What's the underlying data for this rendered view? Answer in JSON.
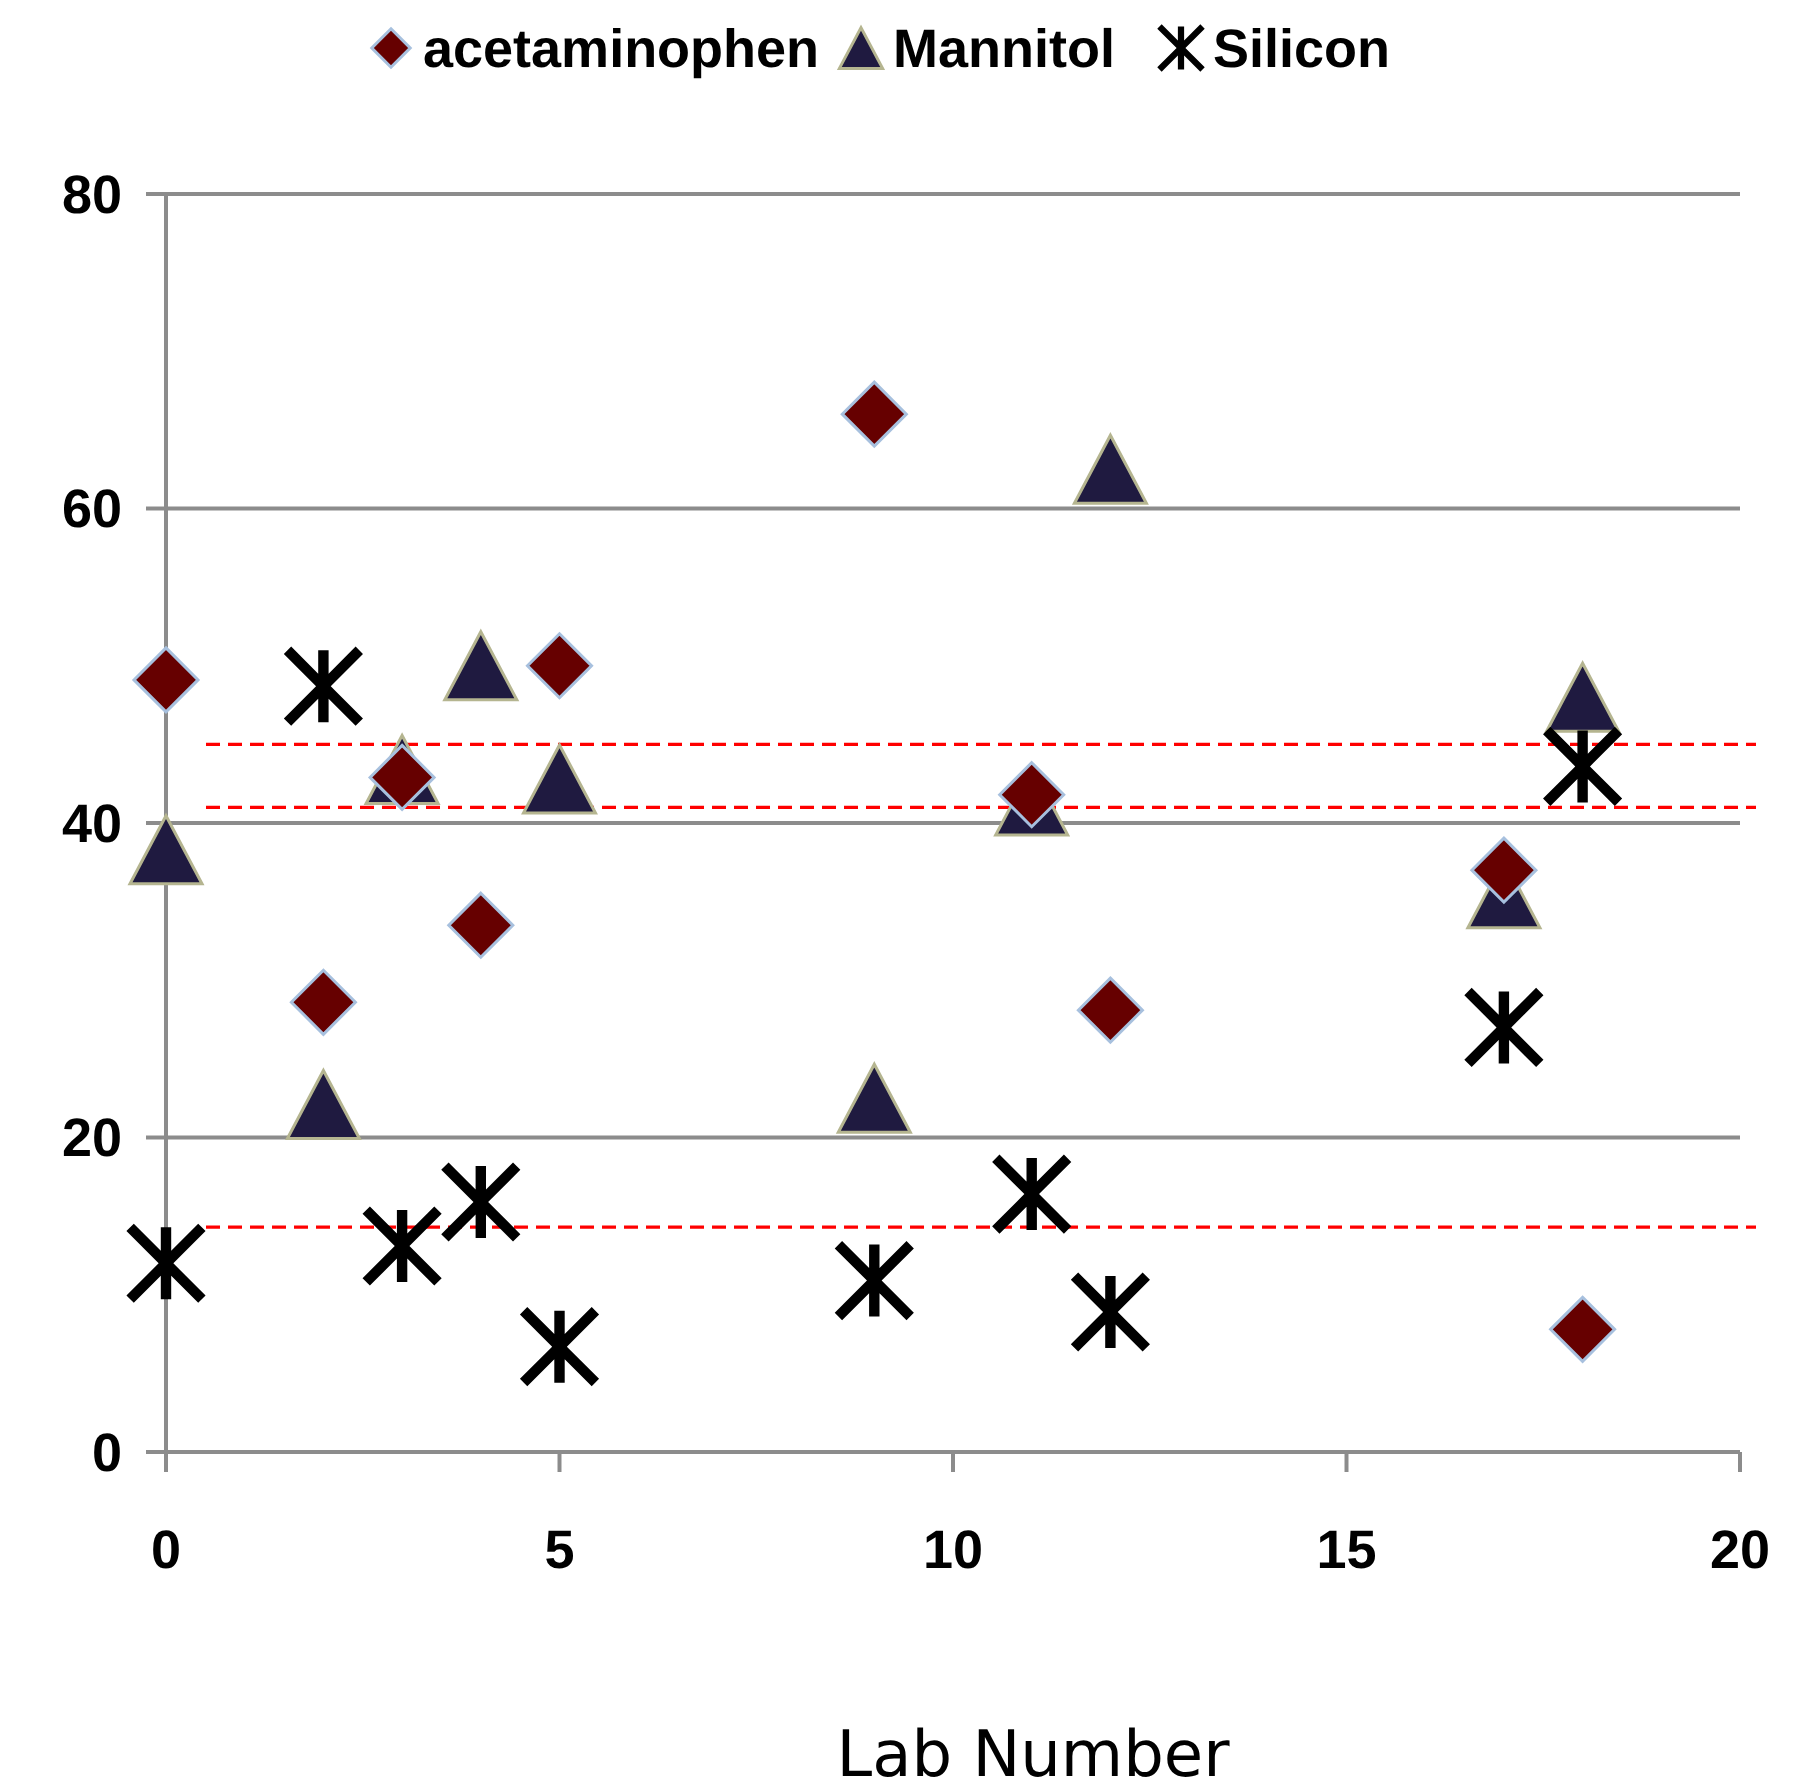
{
  "chart_data": {
    "type": "scatter",
    "xlabel": "Lab Number",
    "xlim": [
      0,
      20
    ],
    "xticks": [
      0,
      5,
      10,
      15,
      20
    ],
    "ylim": [
      0,
      80
    ],
    "yticks": [
      0,
      20,
      40,
      60,
      80
    ],
    "grid": "y",
    "legend": "top",
    "series": [
      {
        "name": "acetaminophen",
        "color": "#660000",
        "marker": "diamond",
        "x": [
          0,
          2,
          3,
          4,
          5,
          9,
          11,
          12,
          17,
          18
        ],
        "values": [
          49.1,
          28.6,
          42.9,
          33.5,
          50,
          66,
          41.8,
          28.1,
          37,
          7.8
        ]
      },
      {
        "name": "Mannitol",
        "color": "#1f1a40",
        "marker": "triangle",
        "x": [
          0,
          2,
          3,
          4,
          5,
          9,
          11,
          12,
          17,
          18
        ],
        "values": [
          38.3,
          22.1,
          43.4,
          50,
          42.8,
          22.5,
          41.4,
          62.5,
          35.5,
          48
        ]
      },
      {
        "name": "Silicon",
        "color": "#000000",
        "marker": "star",
        "x": [
          0,
          2,
          3,
          4,
          5,
          9,
          11,
          12,
          17,
          18
        ],
        "values": [
          12,
          48.7,
          13.1,
          15.9,
          6.7,
          10.9,
          16.4,
          8.9,
          27,
          43.6
        ]
      }
    ],
    "ref_lines": [
      {
        "axis": "y",
        "value": 45,
        "color": "#ff0000",
        "line_style": "dashed"
      },
      {
        "axis": "y",
        "value": 41,
        "color": "#ff0000",
        "line_style": "dashed"
      },
      {
        "axis": "y",
        "value": 14.3,
        "color": "#ff0000",
        "line_style": "dashed"
      }
    ]
  }
}
